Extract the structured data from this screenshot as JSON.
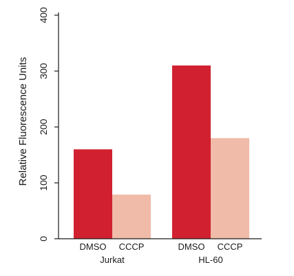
{
  "chart_data": {
    "type": "bar",
    "title": "",
    "xlabel": "",
    "ylabel": "Relative Fluorescence Units",
    "ylim": [
      0,
      400
    ],
    "yticks": [
      0,
      100,
      200,
      300,
      400
    ],
    "grid": false,
    "legend": "none",
    "groups": [
      {
        "label": "Jurkat",
        "bars": [
          {
            "label": "DMSO",
            "value": 160,
            "color": "#d12130"
          },
          {
            "label": "CCCP",
            "value": 79,
            "color": "#f0bba9"
          }
        ]
      },
      {
        "label": "HL-60",
        "bars": [
          {
            "label": "DMSO",
            "value": 310,
            "color": "#d12130"
          },
          {
            "label": "CCCP",
            "value": 180,
            "color": "#f0bba9"
          }
        ]
      }
    ]
  }
}
